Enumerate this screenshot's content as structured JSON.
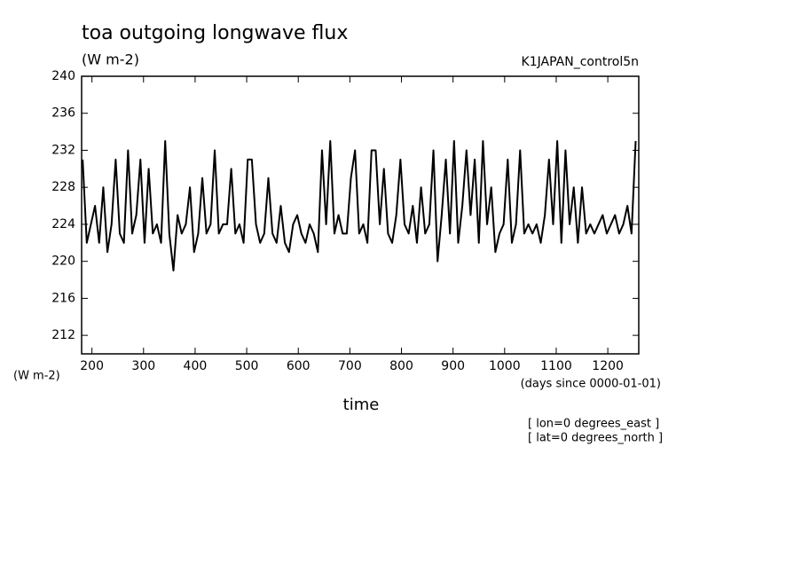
{
  "chart_data": {
    "type": "line",
    "title": "toa outgoing longwave flux",
    "subtitle": "(W m-2)",
    "run_label": "K1JAPAN_control5n",
    "y_unit_label": "(W m-2)",
    "x_unit_label": "(days since 0000-01-01)",
    "xlabel": "time",
    "annotations": [
      "[ lon=0 degrees_east ]",
      "[ lat=0 degrees_north ]"
    ],
    "x": [
      182,
      190,
      198,
      206,
      214,
      222,
      230,
      238,
      246,
      254,
      262,
      270,
      278,
      286,
      294,
      302,
      310,
      318,
      326,
      334,
      342,
      350,
      358,
      366,
      374,
      382,
      390,
      398,
      406,
      414,
      422,
      430,
      438,
      446,
      454,
      462,
      470,
      478,
      486,
      494,
      502,
      510,
      518,
      526,
      534,
      542,
      550,
      558,
      566,
      574,
      582,
      590,
      598,
      606,
      614,
      622,
      630,
      638,
      646,
      654,
      662,
      670,
      678,
      686,
      694,
      702,
      710,
      718,
      726,
      734,
      742,
      750,
      758,
      766,
      774,
      782,
      790,
      798,
      806,
      814,
      822,
      830,
      838,
      846,
      854,
      862,
      870,
      878,
      886,
      894,
      902,
      910,
      918,
      926,
      934,
      942,
      950,
      958,
      966,
      974,
      982,
      990,
      998,
      1006,
      1014,
      1022,
      1030,
      1038,
      1046,
      1054,
      1062,
      1070,
      1078,
      1086,
      1094,
      1102,
      1110,
      1118,
      1126,
      1134,
      1142,
      1150,
      1158,
      1166,
      1174,
      1182,
      1190,
      1198,
      1206,
      1214,
      1222,
      1230,
      1238,
      1246,
      1254
    ],
    "series": [
      {
        "name": "toa outgoing longwave flux",
        "color": "#000000",
        "values": [
          231,
          222,
          224,
          226,
          222,
          228,
          221,
          224,
          231,
          223,
          222,
          232,
          223,
          225,
          231,
          222,
          230,
          223,
          224,
          222,
          233,
          223,
          219,
          225,
          223,
          224,
          228,
          221,
          223,
          229,
          223,
          224,
          232,
          223,
          224,
          224,
          230,
          223,
          224,
          222,
          231,
          231,
          224,
          222,
          223,
          229,
          223,
          222,
          226,
          222,
          221,
          224,
          225,
          223,
          222,
          224,
          223,
          221,
          232,
          224,
          233,
          223,
          225,
          223,
          223,
          229,
          232,
          223,
          224,
          222,
          232,
          232,
          224,
          230,
          223,
          222,
          225,
          231,
          224,
          223,
          226,
          222,
          228,
          223,
          224,
          232,
          220,
          225,
          231,
          223,
          233,
          222,
          226,
          232,
          225,
          231,
          222,
          233,
          224,
          228,
          221,
          223,
          224,
          231,
          222,
          224,
          232,
          223,
          224,
          223,
          224,
          222,
          225,
          231,
          224,
          233,
          222,
          232,
          224,
          228,
          222,
          228,
          223,
          224,
          223,
          224,
          225,
          223,
          224,
          225,
          223,
          224,
          226,
          223,
          233
        ]
      }
    ],
    "xlim": [
      180,
      1260
    ],
    "ylim": [
      210,
      240
    ],
    "xticks": [
      200,
      300,
      400,
      500,
      600,
      700,
      800,
      900,
      1000,
      1100,
      1200
    ],
    "yticks": [
      212,
      216,
      220,
      224,
      228,
      232,
      236,
      240
    ]
  }
}
